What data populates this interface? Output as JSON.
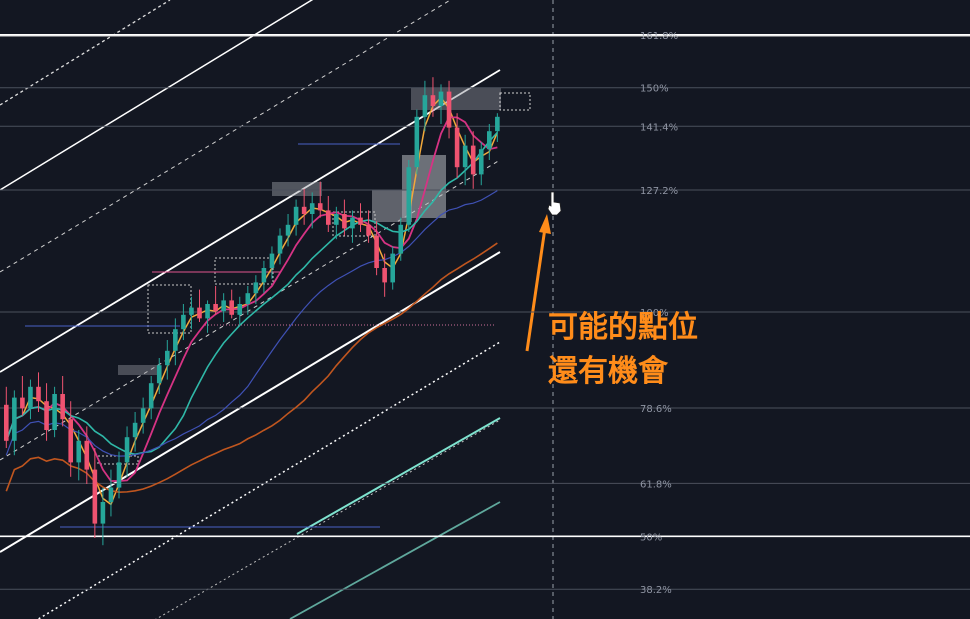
{
  "chart_data": {
    "type": "candlestick",
    "fib_levels": [
      {
        "label": "161.8%",
        "value": 161.8
      },
      {
        "label": "150%",
        "value": 150
      },
      {
        "label": "141.4%",
        "value": 141.4
      },
      {
        "label": "127.2%",
        "value": 127.2
      },
      {
        "label": "100%",
        "value": 100
      },
      {
        "label": "78.6%",
        "value": 78.6
      },
      {
        "label": "61.8%",
        "value": 61.8
      },
      {
        "label": "50%",
        "value": 50
      },
      {
        "label": "38.2%",
        "value": 38.2
      }
    ],
    "bullish_color": "#26a69a",
    "bearish_color": "#ef5370",
    "fast_ma_color": "#f2a93b",
    "mid_ma_color": "#d63384",
    "slow_ma_color": "#2fb8a8",
    "long_ma_color": "#c0561f",
    "trend_ma_color": "#3f51b5",
    "candles": [
      {
        "o": 72,
        "h": 77,
        "l": 60,
        "c": 62
      },
      {
        "o": 62,
        "h": 76,
        "l": 58,
        "c": 74
      },
      {
        "o": 74,
        "h": 80,
        "l": 69,
        "c": 71
      },
      {
        "o": 71,
        "h": 79,
        "l": 68,
        "c": 77
      },
      {
        "o": 77,
        "h": 81,
        "l": 70,
        "c": 73
      },
      {
        "o": 73,
        "h": 78,
        "l": 62,
        "c": 65
      },
      {
        "o": 65,
        "h": 77,
        "l": 63,
        "c": 75
      },
      {
        "o": 75,
        "h": 80,
        "l": 66,
        "c": 68
      },
      {
        "o": 68,
        "h": 73,
        "l": 52,
        "c": 56
      },
      {
        "o": 56,
        "h": 65,
        "l": 51,
        "c": 62
      },
      {
        "o": 62,
        "h": 66,
        "l": 50,
        "c": 54
      },
      {
        "o": 54,
        "h": 60,
        "l": 35,
        "c": 39
      },
      {
        "o": 39,
        "h": 49,
        "l": 33,
        "c": 45
      },
      {
        "o": 45,
        "h": 54,
        "l": 41,
        "c": 49
      },
      {
        "o": 49,
        "h": 59,
        "l": 46,
        "c": 56
      },
      {
        "o": 56,
        "h": 66,
        "l": 52,
        "c": 63
      },
      {
        "o": 63,
        "h": 70,
        "l": 59,
        "c": 67
      },
      {
        "o": 67,
        "h": 74,
        "l": 64,
        "c": 71
      },
      {
        "o": 71,
        "h": 80,
        "l": 68,
        "c": 78
      },
      {
        "o": 78,
        "h": 85,
        "l": 75,
        "c": 83
      },
      {
        "o": 83,
        "h": 90,
        "l": 79,
        "c": 87
      },
      {
        "o": 87,
        "h": 96,
        "l": 83,
        "c": 93
      },
      {
        "o": 93,
        "h": 100,
        "l": 90,
        "c": 97
      },
      {
        "o": 97,
        "h": 102,
        "l": 93,
        "c": 99
      },
      {
        "o": 99,
        "h": 104,
        "l": 95,
        "c": 96
      },
      {
        "o": 96,
        "h": 101,
        "l": 92,
        "c": 100
      },
      {
        "o": 100,
        "h": 105,
        "l": 97,
        "c": 98
      },
      {
        "o": 98,
        "h": 103,
        "l": 95,
        "c": 101
      },
      {
        "o": 101,
        "h": 104,
        "l": 96,
        "c": 97
      },
      {
        "o": 97,
        "h": 102,
        "l": 94,
        "c": 100
      },
      {
        "o": 100,
        "h": 105,
        "l": 97,
        "c": 103
      },
      {
        "o": 103,
        "h": 108,
        "l": 100,
        "c": 106
      },
      {
        "o": 106,
        "h": 112,
        "l": 103,
        "c": 110
      },
      {
        "o": 110,
        "h": 116,
        "l": 107,
        "c": 114
      },
      {
        "o": 114,
        "h": 121,
        "l": 111,
        "c": 119
      },
      {
        "o": 119,
        "h": 125,
        "l": 116,
        "c": 122
      },
      {
        "o": 122,
        "h": 129,
        "l": 119,
        "c": 127
      },
      {
        "o": 127,
        "h": 132,
        "l": 122,
        "c": 125
      },
      {
        "o": 125,
        "h": 131,
        "l": 121,
        "c": 128
      },
      {
        "o": 128,
        "h": 134,
        "l": 124,
        "c": 126
      },
      {
        "o": 126,
        "h": 130,
        "l": 120,
        "c": 122
      },
      {
        "o": 122,
        "h": 127,
        "l": 118,
        "c": 125
      },
      {
        "o": 125,
        "h": 129,
        "l": 119,
        "c": 121
      },
      {
        "o": 121,
        "h": 126,
        "l": 117,
        "c": 124
      },
      {
        "o": 124,
        "h": 128,
        "l": 120,
        "c": 122
      },
      {
        "o": 122,
        "h": 126,
        "l": 117,
        "c": 119
      },
      {
        "o": 119,
        "h": 123,
        "l": 108,
        "c": 110
      },
      {
        "o": 110,
        "h": 114,
        "l": 102,
        "c": 106
      },
      {
        "o": 106,
        "h": 116,
        "l": 104,
        "c": 114
      },
      {
        "o": 114,
        "h": 124,
        "l": 112,
        "c": 122
      },
      {
        "o": 122,
        "h": 140,
        "l": 120,
        "c": 138
      },
      {
        "o": 138,
        "h": 154,
        "l": 136,
        "c": 152
      },
      {
        "o": 152,
        "h": 162,
        "l": 148,
        "c": 158
      },
      {
        "o": 158,
        "h": 163,
        "l": 152,
        "c": 155
      },
      {
        "o": 155,
        "h": 161,
        "l": 150,
        "c": 159
      },
      {
        "o": 159,
        "h": 162,
        "l": 146,
        "c": 149
      },
      {
        "o": 149,
        "h": 153,
        "l": 135,
        "c": 138
      },
      {
        "o": 138,
        "h": 147,
        "l": 133,
        "c": 144
      },
      {
        "o": 144,
        "h": 148,
        "l": 132,
        "c": 136
      },
      {
        "o": 136,
        "h": 145,
        "l": 133,
        "c": 143
      },
      {
        "o": 143,
        "h": 150,
        "l": 140,
        "c": 148
      },
      {
        "o": 148,
        "h": 153,
        "l": 145,
        "c": 152
      }
    ]
  },
  "annotation": {
    "line1": "可能的點位",
    "line2": "還有機會"
  }
}
